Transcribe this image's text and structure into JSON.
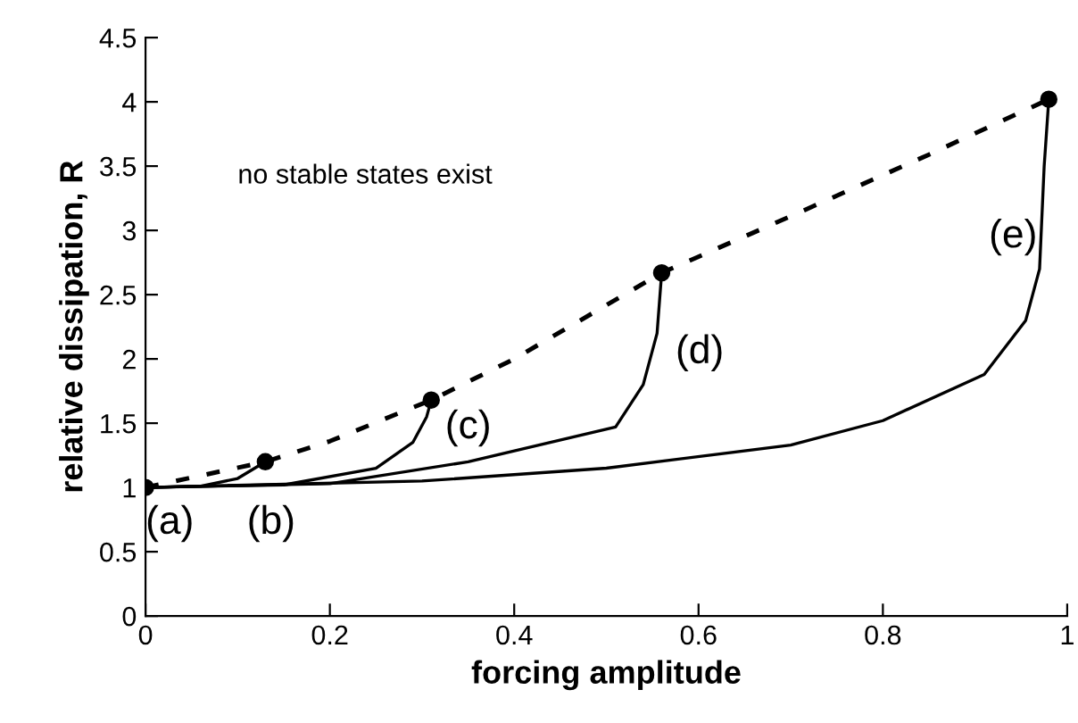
{
  "chart_data": {
    "type": "line",
    "xlabel": "forcing amplitude",
    "ylabel": "relative dissipation, R",
    "xlim": [
      0,
      1
    ],
    "ylim": [
      0,
      4.5
    ],
    "xticks": [
      0,
      0.2,
      0.4,
      0.6,
      0.8,
      {
        "value": 1,
        "label": "1"
      }
    ],
    "yticks": [
      0,
      0.5,
      1,
      1.5,
      2,
      2.5,
      3,
      3.5,
      4,
      4.5
    ],
    "grid": false,
    "legend": false,
    "series": [
      {
        "type": "line",
        "line_style": "dashed",
        "color": "#000000",
        "x": [
          0,
          0.13,
          0.2,
          0.31,
          0.4,
          0.56,
          0.7,
          0.85,
          0.98
        ],
        "values": [
          1,
          1.2,
          1.36,
          1.68,
          2.0,
          2.67,
          3.11,
          3.59,
          4.02
        ]
      },
      {
        "type": "line",
        "line_style": "solid",
        "color": "#000000",
        "x": [
          0,
          0.06,
          0.1,
          0.13
        ],
        "values": [
          1,
          1.01,
          1.07,
          1.2
        ]
      },
      {
        "type": "line",
        "line_style": "solid",
        "color": "#000000",
        "x": [
          0,
          0.15,
          0.25,
          0.29,
          0.305,
          0.31
        ],
        "values": [
          1,
          1.02,
          1.15,
          1.35,
          1.55,
          1.68
        ]
      },
      {
        "type": "line",
        "line_style": "solid",
        "color": "#000000",
        "x": [
          0,
          0.2,
          0.35,
          0.51,
          0.54,
          0.555,
          0.56
        ],
        "values": [
          1,
          1.03,
          1.2,
          1.47,
          1.8,
          2.2,
          2.67
        ]
      },
      {
        "type": "line",
        "line_style": "solid",
        "color": "#000000",
        "x": [
          0,
          0.3,
          0.5,
          0.7,
          0.8,
          0.91,
          0.955,
          0.97,
          0.975,
          0.98
        ],
        "values": [
          1,
          1.05,
          1.15,
          1.33,
          1.52,
          1.88,
          2.3,
          2.7,
          3.5,
          4.02
        ]
      },
      {
        "type": "scatter",
        "marker": "circle",
        "color": "#000000",
        "x": [
          0,
          0.13,
          0.31,
          0.56,
          0.98
        ],
        "values": [
          1,
          1.2,
          1.68,
          2.67,
          4.02
        ]
      }
    ],
    "annotations": [
      "no stable states exist",
      "(a)",
      "(b)",
      "(c)",
      "(d)",
      "(e)"
    ]
  }
}
